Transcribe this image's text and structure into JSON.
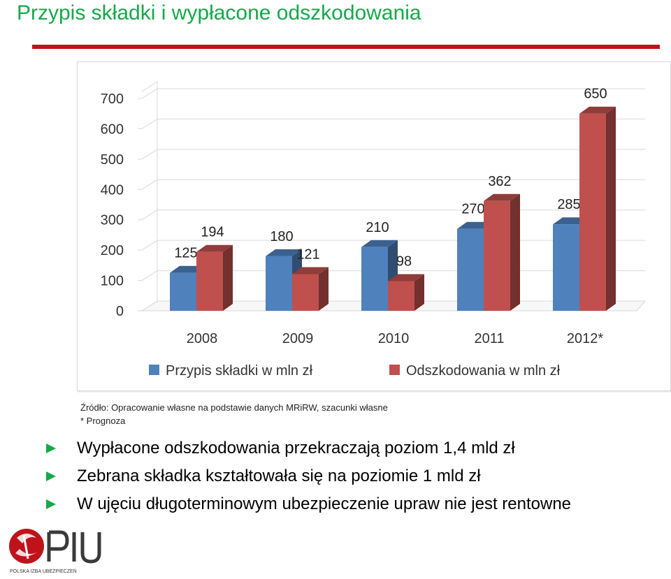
{
  "title": "Przypis składki i wypłacone odszkodowania",
  "colors": {
    "title": "#17a84a",
    "rule": "#c0121b",
    "series1": "#4f81bd",
    "series2": "#c0504d"
  },
  "chart_data": {
    "type": "bar",
    "subtype": "clustered-3d",
    "categories": [
      "2008",
      "2009",
      "2010",
      "2011",
      "2012*"
    ],
    "series": [
      {
        "name": "Przypis składki w mln zł",
        "values": [
          125,
          180,
          210,
          270,
          285
        ],
        "color": "#4f81bd"
      },
      {
        "name": "Odszkodowania w mln zł",
        "values": [
          194,
          121,
          98,
          362,
          650
        ],
        "color": "#c0504d"
      }
    ],
    "ylim": [
      0,
      700
    ],
    "yticks": [
      "0",
      "100",
      "200",
      "300",
      "400",
      "500",
      "600",
      "700"
    ],
    "data_labels": true,
    "grid": true,
    "legend": "bottom"
  },
  "source_lines": [
    "Źródło: Opracowanie własne na podstawie danych MRiRW, szacunki własne",
    "* Prognoza"
  ],
  "bullets": [
    "Wypłacone odszkodowania przekraczają poziom 1,4 mld zł",
    "Zebrana składka kształtowała się na poziomie 1 mld zł",
    "W ujęciu długoterminowym ubezpieczenie upraw nie jest rentowne"
  ],
  "logo": {
    "name": "PIU",
    "subtitle": "POLSKA IZBA UBEZPIECZEŃ"
  }
}
